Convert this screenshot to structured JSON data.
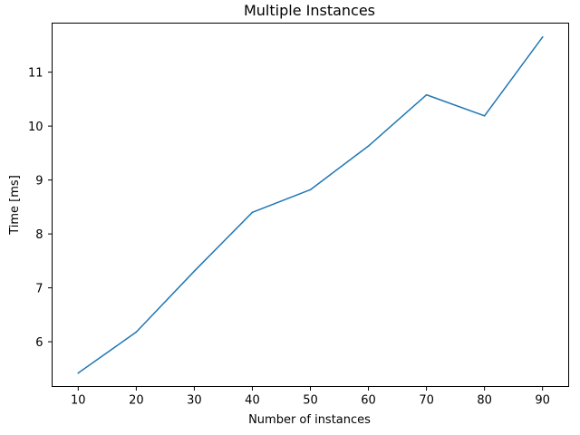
{
  "chart_data": {
    "type": "line",
    "title": "Multiple Instances",
    "xlabel": "Number of instances",
    "ylabel": "Time [ms]",
    "x": [
      10,
      20,
      30,
      40,
      50,
      60,
      70,
      80,
      90
    ],
    "series": [
      {
        "values": [
          5.42,
          6.18,
          7.31,
          8.4,
          8.82,
          9.63,
          10.58,
          10.19,
          11.65
        ],
        "color": "#1f77b4"
      }
    ],
    "xlim": [
      5.5,
      94.5
    ],
    "ylim": [
      5.17,
      11.91
    ],
    "xticks": [
      10,
      20,
      30,
      40,
      50,
      60,
      70,
      80,
      90
    ],
    "yticks": [
      6,
      7,
      8,
      9,
      10,
      11
    ],
    "grid": false,
    "legend": "none"
  }
}
